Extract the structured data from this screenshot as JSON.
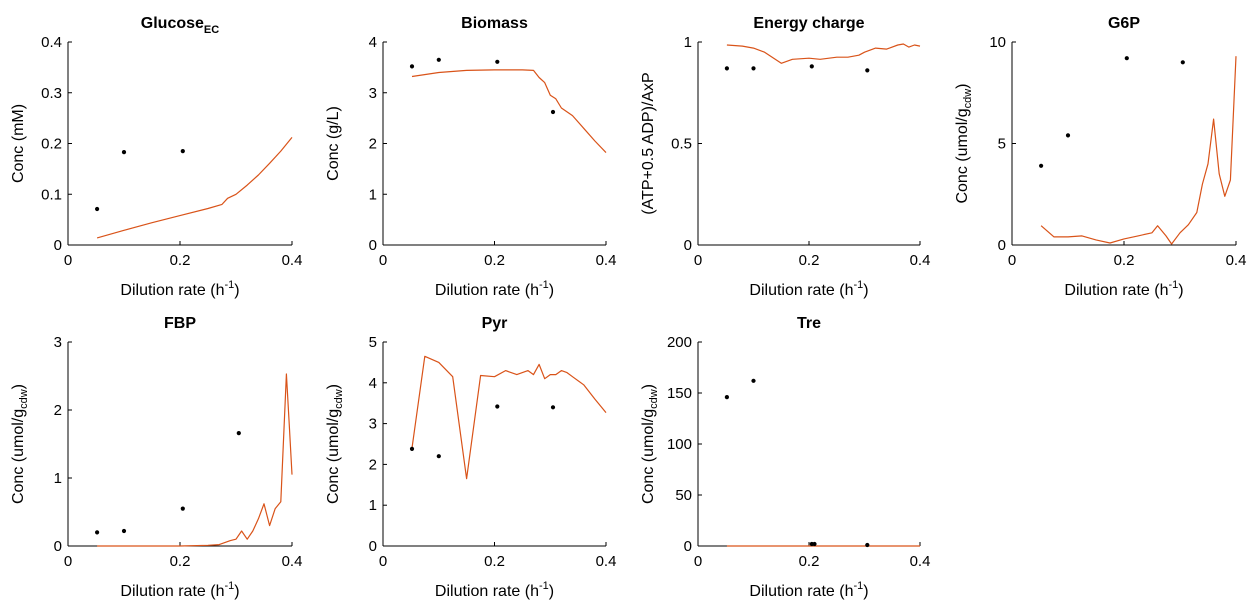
{
  "style": {
    "model_color": "#D95319",
    "data_color": "#000000",
    "axis_color": "#000000"
  },
  "chart_data": [
    {
      "type": "line",
      "title": "Glucose",
      "title_sub": "EC",
      "xlabel": "Dilution rate (h",
      "xlabel_sup": "-1",
      "xlabel_end": ")",
      "ylabel": "Conc (mM)",
      "ylabel_sub": "",
      "ylabel_end": "",
      "xlim": [
        0,
        0.4
      ],
      "ylim": [
        0,
        0.4
      ],
      "xticks": [
        "0",
        "0.2",
        "0.4"
      ],
      "xtick_values": [
        0,
        0.2,
        0.4
      ],
      "yticks": [
        "0",
        "0.1",
        "0.2",
        "0.3",
        "0.4"
      ],
      "ytick_values": [
        0,
        0.1,
        0.2,
        0.3,
        0.4
      ],
      "grid": false,
      "series": [
        {
          "kind": "line",
          "x": [
            0.052,
            0.1,
            0.15,
            0.2,
            0.25,
            0.275,
            0.285,
            0.3,
            0.32,
            0.34,
            0.36,
            0.38,
            0.4
          ],
          "y": [
            0.014,
            0.029,
            0.044,
            0.058,
            0.072,
            0.08,
            0.092,
            0.1,
            0.118,
            0.138,
            0.161,
            0.185,
            0.212
          ]
        },
        {
          "kind": "points",
          "x": [
            0.052,
            0.1,
            0.205
          ],
          "y": [
            0.071,
            0.183,
            0.185
          ]
        }
      ]
    },
    {
      "type": "line",
      "title": "Biomass",
      "title_sub": "",
      "xlabel": "Dilution rate (h",
      "xlabel_sup": "-1",
      "xlabel_end": ")",
      "ylabel": "Conc (g/L)",
      "ylabel_sub": "",
      "ylabel_end": "",
      "xlim": [
        0,
        0.4
      ],
      "ylim": [
        0,
        4
      ],
      "xticks": [
        "0",
        "0.2",
        "0.4"
      ],
      "xtick_values": [
        0,
        0.2,
        0.4
      ],
      "yticks": [
        "0",
        "1",
        "2",
        "3",
        "4"
      ],
      "ytick_values": [
        0,
        1,
        2,
        3,
        4
      ],
      "grid": false,
      "series": [
        {
          "kind": "line",
          "x": [
            0.052,
            0.1,
            0.15,
            0.2,
            0.25,
            0.27,
            0.28,
            0.29,
            0.3,
            0.31,
            0.32,
            0.34,
            0.36,
            0.38,
            0.4
          ],
          "y": [
            3.32,
            3.4,
            3.44,
            3.45,
            3.45,
            3.44,
            3.3,
            3.2,
            2.95,
            2.88,
            2.7,
            2.55,
            2.3,
            2.05,
            1.82
          ]
        },
        {
          "kind": "points",
          "x": [
            0.052,
            0.1,
            0.205,
            0.305
          ],
          "y": [
            3.52,
            3.65,
            3.61,
            2.62
          ]
        }
      ]
    },
    {
      "type": "line",
      "title": "Energy charge",
      "title_sub": "",
      "xlabel": "Dilution rate (h",
      "xlabel_sup": "-1",
      "xlabel_end": ")",
      "ylabel": "(ATP+0.5 ADP)/AxP",
      "ylabel_sub": "",
      "ylabel_end": "",
      "xlim": [
        0,
        0.4
      ],
      "ylim": [
        0,
        1
      ],
      "xticks": [
        "0",
        "0.2",
        "0.4"
      ],
      "xtick_values": [
        0,
        0.2,
        0.4
      ],
      "yticks": [
        "0",
        "0.5",
        "1"
      ],
      "ytick_values": [
        0,
        0.5,
        1
      ],
      "grid": false,
      "series": [
        {
          "kind": "line",
          "x": [
            0.052,
            0.08,
            0.1,
            0.12,
            0.15,
            0.17,
            0.2,
            0.22,
            0.25,
            0.27,
            0.29,
            0.3,
            0.32,
            0.34,
            0.36,
            0.37,
            0.38,
            0.39,
            0.4
          ],
          "y": [
            0.985,
            0.98,
            0.97,
            0.95,
            0.895,
            0.915,
            0.92,
            0.915,
            0.925,
            0.925,
            0.935,
            0.95,
            0.97,
            0.965,
            0.985,
            0.99,
            0.975,
            0.985,
            0.98
          ]
        },
        {
          "kind": "points",
          "x": [
            0.052,
            0.1,
            0.205,
            0.305
          ],
          "y": [
            0.87,
            0.87,
            0.88,
            0.86
          ]
        }
      ]
    },
    {
      "type": "line",
      "title": "G6P",
      "title_sub": "",
      "xlabel": "Dilution rate (h",
      "xlabel_sup": "-1",
      "xlabel_end": ")",
      "ylabel": "Conc (umol/g",
      "ylabel_sub": "cdw",
      "ylabel_end": ")",
      "xlim": [
        0,
        0.4
      ],
      "ylim": [
        0,
        10
      ],
      "xticks": [
        "0",
        "0.2",
        "0.4"
      ],
      "xtick_values": [
        0,
        0.2,
        0.4
      ],
      "yticks": [
        "0",
        "5",
        "10"
      ],
      "ytick_values": [
        0,
        5,
        10
      ],
      "grid": false,
      "series": [
        {
          "kind": "line",
          "x": [
            0.052,
            0.075,
            0.1,
            0.125,
            0.15,
            0.175,
            0.2,
            0.225,
            0.25,
            0.26,
            0.275,
            0.285,
            0.3,
            0.315,
            0.33,
            0.34,
            0.35,
            0.36,
            0.37,
            0.38,
            0.39,
            0.4
          ],
          "y": [
            0.95,
            0.4,
            0.4,
            0.45,
            0.25,
            0.1,
            0.3,
            0.45,
            0.6,
            0.95,
            0.45,
            0.05,
            0.6,
            1.0,
            1.6,
            3.0,
            4.0,
            6.2,
            3.5,
            2.4,
            3.2,
            9.3
          ]
        },
        {
          "kind": "points",
          "x": [
            0.052,
            0.1,
            0.205,
            0.305
          ],
          "y": [
            3.9,
            5.4,
            9.2,
            9.0
          ]
        }
      ]
    },
    {
      "type": "line",
      "title": "FBP",
      "title_sub": "",
      "xlabel": "Dilution rate (h",
      "xlabel_sup": "-1",
      "xlabel_end": ")",
      "ylabel": "Conc (umol/g",
      "ylabel_sub": "cdw",
      "ylabel_end": ")",
      "xlim": [
        0,
        0.4
      ],
      "ylim": [
        0,
        3
      ],
      "xticks": [
        "0",
        "0.2",
        "0.4"
      ],
      "xtick_values": [
        0,
        0.2,
        0.4
      ],
      "yticks": [
        "0",
        "1",
        "2",
        "3"
      ],
      "ytick_values": [
        0,
        1,
        2,
        3
      ],
      "grid": false,
      "series": [
        {
          "kind": "line",
          "x": [
            0.052,
            0.1,
            0.15,
            0.2,
            0.25,
            0.27,
            0.29,
            0.3,
            0.31,
            0.32,
            0.33,
            0.34,
            0.35,
            0.36,
            0.37,
            0.38,
            0.39,
            0.395,
            0.4
          ],
          "y": [
            0,
            0,
            0,
            0,
            0.01,
            0.02,
            0.08,
            0.1,
            0.22,
            0.1,
            0.22,
            0.4,
            0.62,
            0.3,
            0.55,
            0.65,
            2.53,
            1.8,
            1.05
          ]
        },
        {
          "kind": "points",
          "x": [
            0.052,
            0.1,
            0.205,
            0.305
          ],
          "y": [
            0.2,
            0.22,
            0.55,
            1.66
          ]
        }
      ]
    },
    {
      "type": "line",
      "title": "Pyr",
      "title_sub": "",
      "xlabel": "Dilution rate (h",
      "xlabel_sup": "-1",
      "xlabel_end": ")",
      "ylabel": "Conc (umol/g",
      "ylabel_sub": "cdw",
      "ylabel_end": ")",
      "xlim": [
        0,
        0.4
      ],
      "ylim": [
        0,
        5
      ],
      "xticks": [
        "0",
        "0.2",
        "0.4"
      ],
      "xtick_values": [
        0,
        0.2,
        0.4
      ],
      "yticks": [
        "0",
        "1",
        "2",
        "3",
        "4",
        "5"
      ],
      "ytick_values": [
        0,
        1,
        2,
        3,
        4,
        5
      ],
      "grid": false,
      "series": [
        {
          "kind": "line",
          "x": [
            0.052,
            0.075,
            0.1,
            0.125,
            0.15,
            0.175,
            0.2,
            0.22,
            0.24,
            0.25,
            0.26,
            0.27,
            0.28,
            0.29,
            0.3,
            0.31,
            0.32,
            0.33,
            0.34,
            0.36,
            0.38,
            0.4
          ],
          "y": [
            2.4,
            4.65,
            4.5,
            4.15,
            1.65,
            4.18,
            4.15,
            4.3,
            4.2,
            4.25,
            4.3,
            4.2,
            4.45,
            4.1,
            4.2,
            4.2,
            4.3,
            4.25,
            4.15,
            3.95,
            3.6,
            3.27
          ]
        },
        {
          "kind": "points",
          "x": [
            0.052,
            0.1,
            0.205,
            0.305
          ],
          "y": [
            2.38,
            2.2,
            3.42,
            3.4
          ]
        }
      ]
    },
    {
      "type": "line",
      "title": "Tre",
      "title_sub": "",
      "xlabel": "Dilution rate (h",
      "xlabel_sup": "-1",
      "xlabel_end": ")",
      "ylabel": "Conc (umol/g",
      "ylabel_sub": "cdw",
      "ylabel_end": ")",
      "xlim": [
        0,
        0.4
      ],
      "ylim": [
        0,
        200
      ],
      "xticks": [
        "0",
        "0.2",
        "0.4"
      ],
      "xtick_values": [
        0,
        0.2,
        0.4
      ],
      "yticks": [
        "0",
        "50",
        "100",
        "150",
        "200"
      ],
      "ytick_values": [
        0,
        50,
        100,
        150,
        200
      ],
      "grid": false,
      "series": [
        {
          "kind": "line",
          "x": [
            0.052,
            0.1,
            0.2,
            0.3,
            0.4
          ],
          "y": [
            0,
            0,
            0,
            0,
            0
          ]
        },
        {
          "kind": "points",
          "x": [
            0.052,
            0.1,
            0.205,
            0.21,
            0.305
          ],
          "y": [
            146,
            162,
            2,
            2,
            1
          ]
        }
      ]
    }
  ]
}
